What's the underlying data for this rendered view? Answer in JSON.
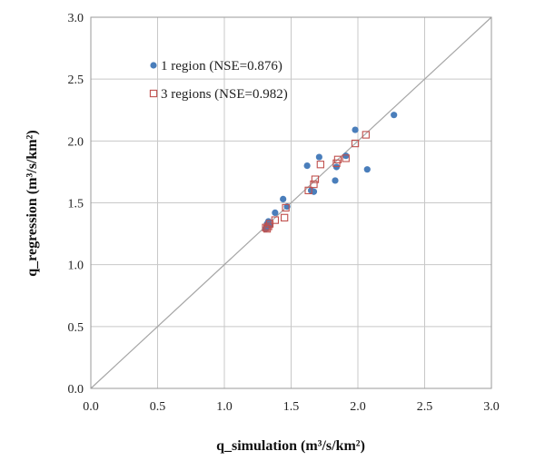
{
  "chart_data": {
    "type": "scatter",
    "xlabel": "q_simulation (m³/s/km²)",
    "ylabel": "q_regression (m³/s/km²)",
    "xlim": [
      0,
      3.0
    ],
    "ylim": [
      0,
      3.0
    ],
    "x_ticks": [
      "0.0",
      "0.5",
      "1.0",
      "1.5",
      "2.0",
      "2.5",
      "3.0"
    ],
    "y_ticks": [
      "0.0",
      "0.5",
      "1.0",
      "1.5",
      "2.0",
      "2.5",
      "3.0"
    ],
    "grid": true,
    "legend_position": "top-left",
    "reference_line": {
      "type": "1:1",
      "color": "#a6a6a6"
    },
    "series": [
      {
        "name": "1 region  (NSE=0.876)",
        "marker": "filled-circle",
        "color": "#4a7ebb",
        "points": [
          [
            1.31,
            1.29
          ],
          [
            1.32,
            1.31
          ],
          [
            1.32,
            1.33
          ],
          [
            1.33,
            1.35
          ],
          [
            1.34,
            1.32
          ],
          [
            1.38,
            1.42
          ],
          [
            1.44,
            1.53
          ],
          [
            1.47,
            1.47
          ],
          [
            1.62,
            1.8
          ],
          [
            1.65,
            1.6
          ],
          [
            1.67,
            1.59
          ],
          [
            1.71,
            1.87
          ],
          [
            1.83,
            1.68
          ],
          [
            1.84,
            1.79
          ],
          [
            1.91,
            1.88
          ],
          [
            1.98,
            2.09
          ],
          [
            2.07,
            1.77
          ],
          [
            2.27,
            2.21
          ]
        ]
      },
      {
        "name": "3 regions (NSE=0.982)",
        "marker": "open-square",
        "color": "#c0504d",
        "points": [
          [
            1.31,
            1.3
          ],
          [
            1.32,
            1.29
          ],
          [
            1.33,
            1.31
          ],
          [
            1.34,
            1.33
          ],
          [
            1.38,
            1.36
          ],
          [
            1.45,
            1.38
          ],
          [
            1.46,
            1.46
          ],
          [
            1.63,
            1.6
          ],
          [
            1.67,
            1.65
          ],
          [
            1.68,
            1.69
          ],
          [
            1.72,
            1.81
          ],
          [
            1.84,
            1.82
          ],
          [
            1.85,
            1.85
          ],
          [
            1.91,
            1.86
          ],
          [
            1.98,
            1.98
          ],
          [
            2.06,
            2.05
          ]
        ]
      }
    ]
  }
}
